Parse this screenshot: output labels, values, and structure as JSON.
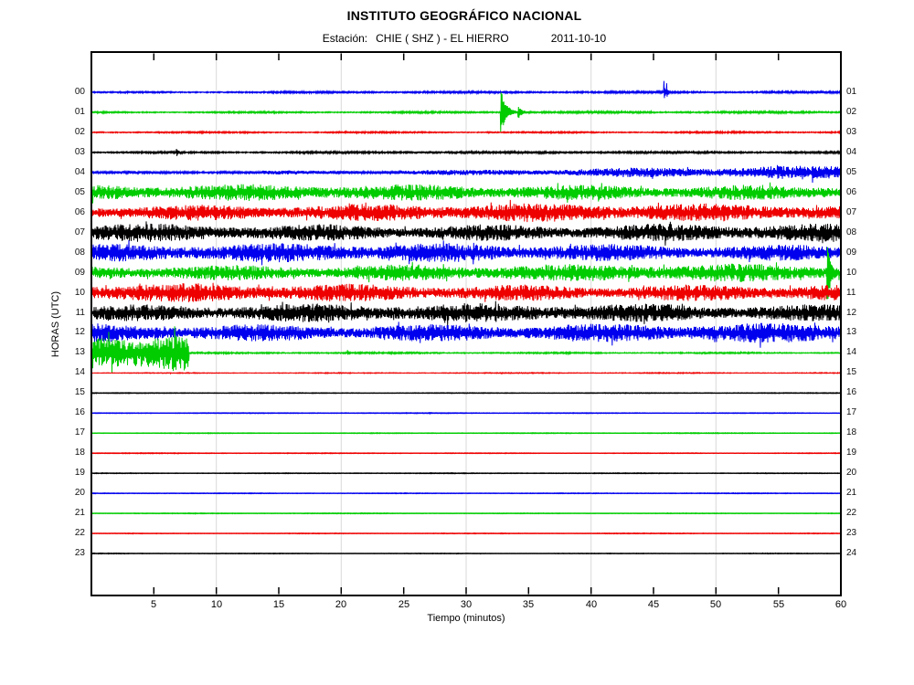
{
  "header": {
    "title": "INSTITUTO GEOGRÁFICO NACIONAL",
    "station_label": "Estación:",
    "station": "CHIE ( SHZ ) - EL HIERRO",
    "date": "2011-10-10"
  },
  "axes": {
    "ylabel": "HORAS (UTC)",
    "xlabel": "Tiempo (minutos)",
    "x_range": [
      0,
      60
    ],
    "x_ticks": [
      5,
      10,
      15,
      20,
      25,
      30,
      35,
      40,
      45,
      50,
      55,
      60
    ],
    "x_gridlines": [
      10,
      20,
      30,
      40,
      50
    ],
    "grid_on": true
  },
  "chart_data": {
    "type": "line",
    "subtype": "helicorder-seismogram",
    "title": "INSTITUTO GEOGRÁFICO NACIONAL",
    "subtitle": "Estación: CHIE ( SHZ ) - EL HIERRO 2011-10-10",
    "xlabel": "Tiempo (minutos)",
    "ylabel": "HORAS (UTC)",
    "minutes_per_line": 60,
    "x_range": [
      0,
      60
    ],
    "colors": {
      "blue": "#0000ee",
      "green": "#00cc00",
      "red": "#ee0000",
      "black": "#000000",
      "grid": "#d9d9d9",
      "frame": "#000000"
    },
    "traces": [
      {
        "hour": "00",
        "end": "01",
        "color": "blue",
        "amp": [
          0.9,
          1.7
        ],
        "events": [
          {
            "t": 45.8,
            "a": 27,
            "d": 0.07
          },
          {
            "t": 46.05,
            "a": 12,
            "d": 0.06
          }
        ]
      },
      {
        "hour": "01",
        "end": "02",
        "color": "green",
        "amp": [
          1.1,
          1.3
        ],
        "events": [
          {
            "t": 32.75,
            "a": 27,
            "d": 0.4
          },
          {
            "t": 34.15,
            "a": 8,
            "d": 0.25
          }
        ]
      },
      {
        "hour": "02",
        "end": "03",
        "color": "red",
        "amp": [
          0.9,
          1.2
        ],
        "events": []
      },
      {
        "hour": "03",
        "end": "04",
        "color": "black",
        "amp": [
          1.2,
          1.6
        ],
        "events": [
          {
            "t": 6.8,
            "a": 5,
            "d": 0.12
          }
        ]
      },
      {
        "hour": "04",
        "end": "05",
        "color": "blue",
        "amp": [
          1.5,
          3.5,
          8.0
        ],
        "events": []
      },
      {
        "hour": "05",
        "end": "06",
        "color": "green",
        "amp": [
          9.0,
          10.0
        ],
        "events": []
      },
      {
        "hour": "06",
        "end": "07",
        "color": "red",
        "amp": [
          10.0,
          10.5
        ],
        "events": []
      },
      {
        "hour": "07",
        "end": "08",
        "color": "black",
        "amp": [
          10.5,
          10.5
        ],
        "events": []
      },
      {
        "hour": "08",
        "end": "09",
        "color": "blue",
        "amp": [
          10.5,
          10.5
        ],
        "events": []
      },
      {
        "hour": "09",
        "end": "10",
        "color": "green",
        "amp": [
          10.0,
          10.0
        ],
        "events": [
          {
            "t": 58.9,
            "a": 40,
            "d": 0.18
          }
        ]
      },
      {
        "hour": "10",
        "end": "11",
        "color": "red",
        "amp": [
          10.5,
          10.5
        ],
        "events": []
      },
      {
        "hour": "11",
        "end": "12",
        "color": "black",
        "amp": [
          10.5,
          10.5
        ],
        "events": []
      },
      {
        "hour": "12",
        "end": "13",
        "color": "blue",
        "amp": [
          11.0,
          11.0
        ],
        "events": []
      },
      {
        "hour": "13",
        "end": "14",
        "color": "green",
        "segments": [
          {
            "from": 0,
            "to": 7.8,
            "amp": 24
          },
          {
            "from": 7.8,
            "to": 60,
            "amp": 1.0
          }
        ],
        "events": [
          {
            "t": 20.5,
            "a": 3,
            "d": 0.1
          },
          {
            "t": 38.0,
            "a": 2.5,
            "d": 0.1
          }
        ]
      },
      {
        "hour": "14",
        "end": "15",
        "color": "red",
        "amp": [
          0.55,
          0.55
        ],
        "events": []
      },
      {
        "hour": "15",
        "end": "16",
        "color": "black",
        "amp": [
          0.28,
          0.28
        ],
        "events": []
      },
      {
        "hour": "16",
        "end": "17",
        "color": "blue",
        "amp": [
          0.28,
          0.28
        ],
        "events": []
      },
      {
        "hour": "17",
        "end": "18",
        "color": "green",
        "amp": [
          0.28,
          0.28
        ],
        "events": []
      },
      {
        "hour": "18",
        "end": "19",
        "color": "red",
        "amp": [
          0.28,
          0.28
        ],
        "events": []
      },
      {
        "hour": "19",
        "end": "20",
        "color": "black",
        "amp": [
          0.28,
          0.28
        ],
        "events": []
      },
      {
        "hour": "20",
        "end": "21",
        "color": "blue",
        "amp": [
          0.28,
          0.28
        ],
        "events": []
      },
      {
        "hour": "21",
        "end": "22",
        "color": "green",
        "amp": [
          0.28,
          0.28
        ],
        "events": []
      },
      {
        "hour": "22",
        "end": "23",
        "color": "red",
        "amp": [
          0.28,
          0.28
        ],
        "events": []
      },
      {
        "hour": "23",
        "end": "24",
        "color": "black",
        "amp": [
          0.28,
          0.28
        ],
        "events": []
      }
    ]
  }
}
